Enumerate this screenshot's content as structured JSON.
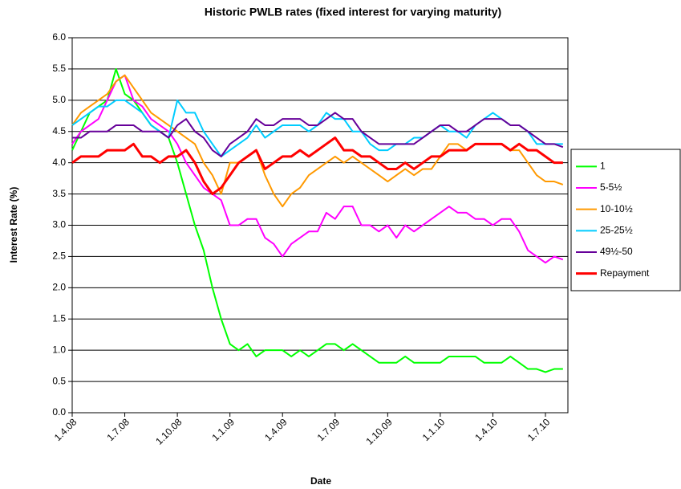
{
  "chart_data": {
    "type": "line",
    "title": "Historic PWLB rates (fixed interest for varying maturity)",
    "x_label": "Date",
    "y_label": "Interest Rate (%)",
    "categories": [
      "1.4.08",
      null,
      null,
      null,
      null,
      null,
      "1.7.08",
      null,
      null,
      null,
      null,
      null,
      "1.10.08",
      null,
      null,
      null,
      null,
      null,
      "1.1.09",
      null,
      null,
      null,
      null,
      null,
      "1.4.09",
      null,
      null,
      null,
      null,
      null,
      "1.7.09",
      null,
      null,
      null,
      null,
      null,
      "1.10.09",
      null,
      null,
      null,
      null,
      null,
      "1.1.10",
      null,
      null,
      null,
      null,
      null,
      "1.4.10",
      null,
      null,
      null,
      null,
      null,
      "1.7.10",
      null,
      null
    ],
    "series": [
      {
        "name": "1",
        "color": "#00ff00",
        "values": [
          4.2,
          4.5,
          4.8,
          4.9,
          5.0,
          5.5,
          5.1,
          5.0,
          4.8,
          4.6,
          4.5,
          4.4,
          4.0,
          3.5,
          3.0,
          2.6,
          2.0,
          1.5,
          1.1,
          1.0,
          1.1,
          0.9,
          1.0,
          1.0,
          1.0,
          0.9,
          1.0,
          0.9,
          1.0,
          1.1,
          1.1,
          1.0,
          1.1,
          1.0,
          0.9,
          0.8,
          0.8,
          0.8,
          0.9,
          0.8,
          0.8,
          0.8,
          0.8,
          0.9,
          0.9,
          0.9,
          0.9,
          0.8,
          0.8,
          0.8,
          0.9,
          0.8,
          0.7,
          0.7,
          0.65,
          0.7,
          0.7
        ]
      },
      {
        "name": "5-5½",
        "color": "#ff00ff",
        "values": [
          4.3,
          4.5,
          4.6,
          4.7,
          5.0,
          5.3,
          5.4,
          5.0,
          4.9,
          4.7,
          4.6,
          4.5,
          4.3,
          4.0,
          3.8,
          3.6,
          3.5,
          3.4,
          3.0,
          3.0,
          3.1,
          3.1,
          2.8,
          2.7,
          2.5,
          2.7,
          2.8,
          2.9,
          2.9,
          3.2,
          3.1,
          3.3,
          3.3,
          3.0,
          3.0,
          2.9,
          3.0,
          2.8,
          3.0,
          2.9,
          3.0,
          3.1,
          3.2,
          3.3,
          3.2,
          3.2,
          3.1,
          3.1,
          3.0,
          3.1,
          3.1,
          2.9,
          2.6,
          2.5,
          2.4,
          2.5,
          2.45
        ]
      },
      {
        "name": "10-10½",
        "color": "#ff9900",
        "values": [
          4.6,
          4.8,
          4.9,
          5.0,
          5.1,
          5.3,
          5.4,
          5.2,
          5.0,
          4.8,
          4.7,
          4.6,
          4.5,
          4.4,
          4.3,
          4.0,
          3.8,
          3.5,
          4.0,
          4.0,
          4.1,
          4.2,
          3.8,
          3.5,
          3.3,
          3.5,
          3.6,
          3.8,
          3.9,
          4.0,
          4.1,
          4.0,
          4.1,
          4.0,
          3.9,
          3.8,
          3.7,
          3.8,
          3.9,
          3.8,
          3.9,
          3.9,
          4.1,
          4.3,
          4.3,
          4.2,
          4.3,
          4.3,
          4.3,
          4.3,
          4.2,
          4.2,
          4.0,
          3.8,
          3.7,
          3.7,
          3.65
        ]
      },
      {
        "name": "25-25½",
        "color": "#00ccff",
        "values": [
          4.6,
          4.7,
          4.8,
          4.9,
          4.9,
          5.0,
          5.0,
          4.9,
          4.8,
          4.6,
          4.5,
          4.4,
          5.0,
          4.8,
          4.8,
          4.5,
          4.3,
          4.1,
          4.2,
          4.3,
          4.4,
          4.6,
          4.4,
          4.5,
          4.6,
          4.6,
          4.6,
          4.5,
          4.6,
          4.8,
          4.7,
          4.7,
          4.5,
          4.5,
          4.3,
          4.2,
          4.2,
          4.3,
          4.3,
          4.4,
          4.4,
          4.5,
          4.6,
          4.5,
          4.5,
          4.4,
          4.6,
          4.7,
          4.8,
          4.7,
          4.6,
          4.6,
          4.5,
          4.3,
          4.3,
          4.3,
          4.3
        ]
      },
      {
        "name": "49½-50",
        "color": "#660099",
        "values": [
          4.4,
          4.4,
          4.5,
          4.5,
          4.5,
          4.6,
          4.6,
          4.6,
          4.5,
          4.5,
          4.5,
          4.4,
          4.6,
          4.7,
          4.5,
          4.4,
          4.2,
          4.1,
          4.3,
          4.4,
          4.5,
          4.7,
          4.6,
          4.6,
          4.7,
          4.7,
          4.7,
          4.6,
          4.6,
          4.7,
          4.8,
          4.7,
          4.7,
          4.5,
          4.4,
          4.3,
          4.3,
          4.3,
          4.3,
          4.3,
          4.4,
          4.5,
          4.6,
          4.6,
          4.5,
          4.5,
          4.6,
          4.7,
          4.7,
          4.7,
          4.6,
          4.6,
          4.5,
          4.4,
          4.3,
          4.3,
          4.25
        ]
      },
      {
        "name": "Repayment",
        "color": "#ff0000",
        "width": 3,
        "values": [
          4.0,
          4.1,
          4.1,
          4.1,
          4.2,
          4.2,
          4.2,
          4.3,
          4.1,
          4.1,
          4.0,
          4.1,
          4.1,
          4.2,
          4.0,
          3.7,
          3.5,
          3.6,
          3.8,
          4.0,
          4.1,
          4.2,
          3.9,
          4.0,
          4.1,
          4.1,
          4.2,
          4.1,
          4.2,
          4.3,
          4.4,
          4.2,
          4.2,
          4.1,
          4.1,
          4.0,
          3.9,
          3.9,
          4.0,
          3.9,
          4.0,
          4.1,
          4.1,
          4.2,
          4.2,
          4.2,
          4.3,
          4.3,
          4.3,
          4.3,
          4.2,
          4.3,
          4.2,
          4.2,
          4.1,
          4.0,
          4.0
        ]
      }
    ],
    "ylim": [
      0,
      6
    ],
    "yticks": [
      {
        "value": 0,
        "label": "0.0"
      },
      0.5,
      {
        "value": 1,
        "label": "1.0"
      },
      1.5,
      {
        "value": 2,
        "label": "2.0"
      },
      2.5,
      {
        "value": 3,
        "label": "3.0"
      },
      3.5,
      {
        "value": 4,
        "label": "4.0"
      },
      4.5,
      {
        "value": 5,
        "label": "5.0"
      },
      5.5,
      {
        "value": 6,
        "label": "6.0"
      }
    ],
    "grid": true,
    "legend": "right"
  }
}
